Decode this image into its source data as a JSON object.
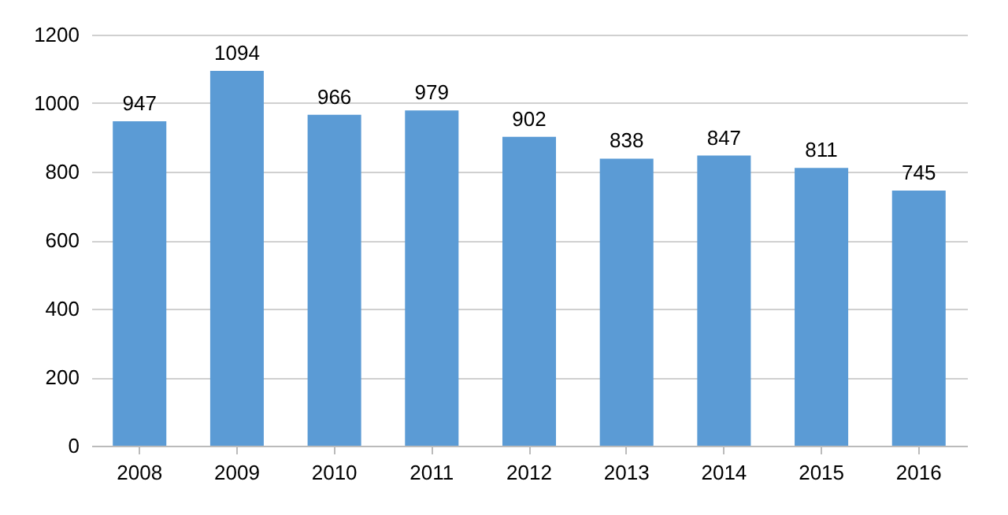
{
  "chart_data": {
    "type": "bar",
    "categories": [
      "2008",
      "2009",
      "2010",
      "2011",
      "2012",
      "2013",
      "2014",
      "2015",
      "2016"
    ],
    "values": [
      947,
      1094,
      966,
      979,
      902,
      838,
      847,
      811,
      745
    ],
    "color": "#5b9bd5",
    "ylim": [
      0,
      1200
    ],
    "yticks": [
      0,
      200,
      400,
      600,
      800,
      1000,
      1200
    ],
    "grid": "y",
    "data_labels": true
  }
}
